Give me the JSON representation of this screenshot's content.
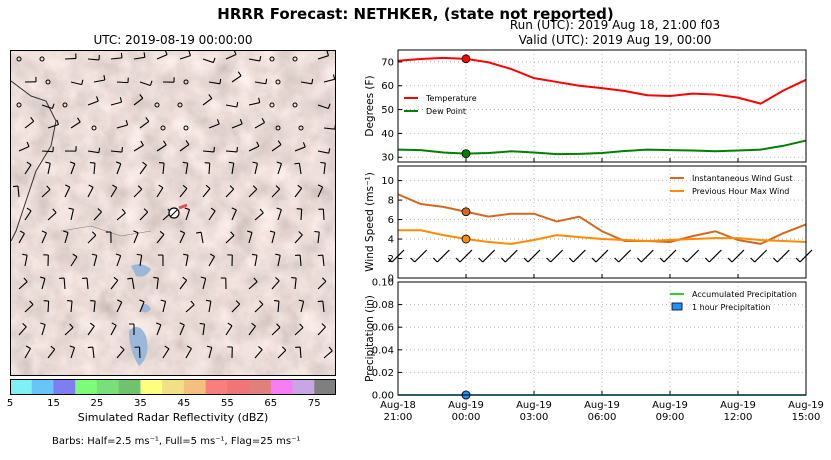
{
  "figure": {
    "title": "HRRR Forecast: NETHKER, (state not reported)",
    "run_line": "Run (UTC): 2019 Aug 18, 21:00 f03",
    "valid_line": "Valid (UTC): 2019 Aug 19, 00:00"
  },
  "map": {
    "title": "UTC: 2019-08-19 00:00:00",
    "colorbar_label": "Simulated Radar Reflectivity (dBZ)",
    "colorbar_ticks": [
      "5",
      "15",
      "25",
      "35",
      "45",
      "55",
      "65",
      "75"
    ],
    "colorbar_colors": [
      "#7ff0f5",
      "#69c4f7",
      "#7e7ef2",
      "#7cfc79",
      "#79e079",
      "#6fc26e",
      "#ffff7f",
      "#f2e087",
      "#f4c07e",
      "#fb7e7e",
      "#f07578",
      "#e0807c",
      "#f57df5",
      "#c8a6e3",
      "#7f7f7f"
    ],
    "barbs_note": "Barbs: Half=2.5 ms⁻¹, Full=5 ms⁻¹, Flag=25 ms⁻¹"
  },
  "chart_data": [
    {
      "type": "line",
      "ylabel": "Degrees (F)",
      "ylim": [
        28,
        75
      ],
      "yticks": [
        "30",
        "40",
        "50",
        "60",
        "70"
      ],
      "grid": true,
      "legend_position": "left",
      "x": [
        "Aug-18 21:00",
        "Aug-18 22:00",
        "Aug-18 23:00",
        "Aug-19 00:00",
        "Aug-19 01:00",
        "Aug-19 02:00",
        "Aug-19 03:00",
        "Aug-19 04:00",
        "Aug-19 05:00",
        "Aug-19 06:00",
        "Aug-19 07:00",
        "Aug-19 08:00",
        "Aug-19 09:00",
        "Aug-19 10:00",
        "Aug-19 11:00",
        "Aug-19 12:00",
        "Aug-19 13:00",
        "Aug-19 14:00",
        "Aug-19 15:00"
      ],
      "series": [
        {
          "name": "Temperature",
          "color": "#ff0000",
          "values": [
            70.5,
            71.2,
            71.7,
            71.3,
            69.8,
            67.0,
            63.2,
            61.6,
            60.0,
            59.0,
            57.8,
            56.0,
            55.7,
            56.7,
            56.3,
            55.0,
            52.5,
            58.0,
            62.5
          ]
        },
        {
          "name": "Dew Point",
          "color": "#008000",
          "values": [
            33.2,
            33.0,
            32.0,
            31.5,
            31.8,
            32.5,
            32.0,
            31.3,
            31.4,
            31.8,
            32.6,
            33.2,
            33.0,
            32.8,
            32.5,
            32.8,
            33.2,
            34.8,
            37.0
          ]
        }
      ],
      "marker_x": "Aug-19 00:00"
    },
    {
      "type": "line",
      "ylabel": "Wind Speed (ms⁻¹)",
      "ylim": [
        0,
        11.5
      ],
      "yticks": [
        "0",
        "2",
        "4",
        "6",
        "8",
        "10"
      ],
      "grid": true,
      "legend_position": "top-right",
      "x": [
        "Aug-18 21:00",
        "Aug-18 22:00",
        "Aug-18 23:00",
        "Aug-19 00:00",
        "Aug-19 01:00",
        "Aug-19 02:00",
        "Aug-19 03:00",
        "Aug-19 04:00",
        "Aug-19 05:00",
        "Aug-19 06:00",
        "Aug-19 07:00",
        "Aug-19 08:00",
        "Aug-19 09:00",
        "Aug-19 10:00",
        "Aug-19 11:00",
        "Aug-19 12:00",
        "Aug-19 13:00",
        "Aug-19 14:00",
        "Aug-19 15:00"
      ],
      "series": [
        {
          "name": "Instantaneous Wind Gust",
          "color": "#d2691e",
          "values": [
            8.6,
            7.6,
            7.3,
            6.8,
            6.3,
            6.6,
            6.6,
            5.8,
            6.3,
            4.8,
            3.8,
            3.8,
            3.7,
            4.3,
            4.8,
            3.9,
            3.5,
            4.6,
            5.5
          ]
        },
        {
          "name": "Previous Hour Max Wind",
          "color": "#ff8c00",
          "values": [
            4.9,
            4.9,
            4.4,
            4.0,
            3.7,
            3.5,
            3.9,
            4.4,
            4.2,
            4.0,
            3.9,
            3.8,
            3.9,
            4.0,
            4.1,
            4.1,
            3.9,
            3.8,
            3.7
          ]
        }
      ],
      "marker_x": "Aug-19 00:00"
    },
    {
      "type": "line",
      "ylabel": "Precipitation (in)",
      "ylim": [
        0,
        0.1
      ],
      "yticks": [
        "0.00",
        "0.02",
        "0.04",
        "0.06",
        "0.08",
        "0.10"
      ],
      "grid": true,
      "legend_position": "top-right",
      "x_tick_labels": [
        [
          "Aug-18",
          "21:00"
        ],
        [
          "Aug-19",
          "00:00"
        ],
        [
          "Aug-19",
          "03:00"
        ],
        [
          "Aug-19",
          "06:00"
        ],
        [
          "Aug-19",
          "09:00"
        ],
        [
          "Aug-19",
          "12:00"
        ],
        [
          "Aug-19",
          "15:00"
        ]
      ],
      "series": [
        {
          "name": "Accumulated Precipitation",
          "color": "#32cd32",
          "values": [
            0,
            0,
            0,
            0,
            0,
            0,
            0,
            0,
            0,
            0,
            0,
            0,
            0,
            0,
            0,
            0,
            0,
            0,
            0
          ]
        },
        {
          "name": "1 hour Precipitation",
          "color": "#1e90ff",
          "values": [
            0,
            0,
            0,
            0,
            0,
            0,
            0,
            0,
            0,
            0,
            0,
            0,
            0,
            0,
            0,
            0,
            0,
            0,
            0
          ]
        }
      ],
      "marker_x": "Aug-19 00:00"
    }
  ]
}
